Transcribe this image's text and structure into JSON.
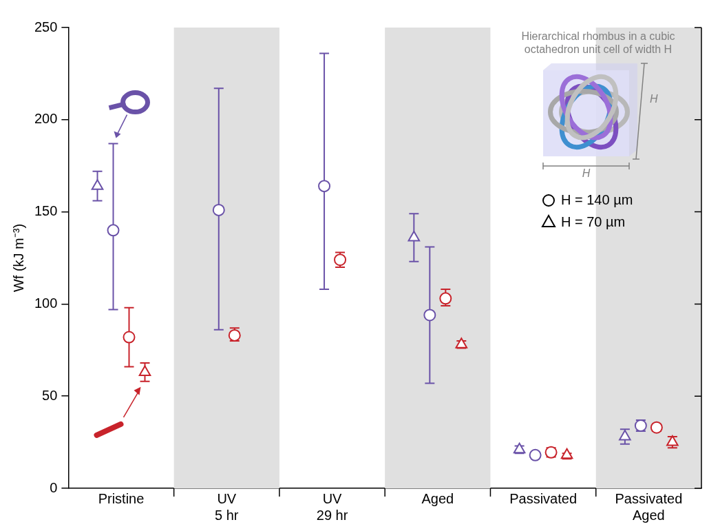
{
  "chart_data": {
    "type": "scatter",
    "y_label": "Wf (kJ m⁻³)",
    "categories": [
      "Pristine",
      "UV 5 hr",
      "UV 29 hr",
      "Aged",
      "Passivated",
      "Passivated Aged"
    ],
    "ylim": [
      0,
      250
    ],
    "yticks": [
      0,
      50,
      100,
      150,
      200,
      250
    ],
    "grid": false,
    "series": [
      {
        "color": "#6a52a8",
        "marker": "triangle",
        "values": [
          164,
          null,
          null,
          136,
          21,
          28
        ],
        "error": [
          [
            156,
            172
          ],
          null,
          null,
          [
            123,
            149
          ],
          [
            19,
            23
          ],
          [
            24,
            32
          ]
        ]
      },
      {
        "color": "#6a52a8",
        "marker": "circle",
        "values": [
          140,
          151,
          164,
          94,
          18,
          34
        ],
        "error": [
          [
            97,
            187
          ],
          [
            86,
            217
          ],
          [
            108,
            236
          ],
          [
            57,
            131
          ],
          [
            17,
            19
          ],
          [
            31,
            37
          ]
        ]
      },
      {
        "color": "#c8232b",
        "marker": "circle",
        "values": [
          82,
          83,
          124,
          103,
          19.5,
          33
        ],
        "error": [
          [
            66,
            98
          ],
          [
            80,
            87
          ],
          [
            120,
            128
          ],
          [
            99,
            108
          ],
          [
            17,
            22
          ],
          [
            31,
            34
          ]
        ]
      },
      {
        "color": "#c8232b",
        "marker": "triangle",
        "values": [
          63,
          null,
          null,
          78,
          18,
          25
        ],
        "error": [
          [
            58,
            68
          ],
          null,
          null,
          [
            76,
            80
          ],
          [
            16,
            19
          ],
          [
            22,
            28
          ]
        ]
      }
    ],
    "legend": "upper right",
    "marker_key": [
      {
        "marker": "circle",
        "label": "H = 140 µm"
      },
      {
        "marker": "triangle",
        "label": "H = 70 µm"
      }
    ],
    "inset": {
      "caption": "Hierarchical rhombus in a cubic octahedron unit cell of width H",
      "dimension_label": "H"
    }
  }
}
